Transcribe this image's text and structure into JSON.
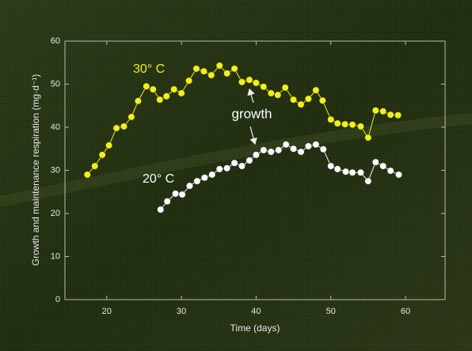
{
  "chart_data": {
    "type": "line",
    "x_label": "Time (days)",
    "y_label": "Growth and maintenance respiration (mg·d⁻¹)",
    "annotation": "growth",
    "xlim": [
      14.4,
      65.3
    ],
    "xticks": [
      20,
      30,
      40,
      50,
      60
    ],
    "ylim": [
      0,
      60
    ],
    "yticks": [
      0,
      10,
      20,
      30,
      40,
      50,
      60
    ],
    "series": [
      {
        "name": "30° C",
        "color": "#f2f20c",
        "x": [
          17.4,
          18.4,
          19.4,
          20.3,
          21.3,
          22.3,
          23.3,
          24.2,
          25.3,
          26.2,
          27.1,
          28.0,
          29.0,
          30.0,
          31.0,
          32.0,
          33.0,
          34.0,
          35.1,
          36.1,
          37.1,
          38.1,
          39.1,
          40.0,
          41.0,
          42.0,
          42.9,
          43.9,
          45.0,
          46.0,
          47.0,
          48.0,
          48.9,
          50.0,
          50.9,
          51.9,
          52.9,
          54.0,
          55.0,
          56.0,
          57.0,
          58.0,
          59.0
        ],
        "values": [
          29.0,
          31.0,
          33.6,
          35.8,
          39.8,
          40.2,
          42.4,
          46.1,
          49.5,
          48.8,
          46.4,
          47.2,
          48.8,
          47.9,
          50.8,
          53.6,
          53.0,
          52.1,
          54.3,
          52.5,
          53.6,
          50.5,
          51.0,
          50.3,
          49.4,
          47.9,
          47.5,
          49.2,
          46.4,
          45.3,
          46.6,
          48.6,
          46.2,
          41.8,
          40.9,
          40.7,
          40.6,
          40.2,
          37.6,
          43.9,
          43.7,
          42.9,
          42.8
        ]
      },
      {
        "name": "20° C",
        "color": "#ffffff",
        "x": [
          27.2,
          28.1,
          29.2,
          30.1,
          31.1,
          32.1,
          33.1,
          34.1,
          35.1,
          36.1,
          37.1,
          38.1,
          39.1,
          40.0,
          41.0,
          42.0,
          43.0,
          44.0,
          45.0,
          46.0,
          47.0,
          48.0,
          49.0,
          50.0,
          50.9,
          52.0,
          52.9,
          54.0,
          55.0,
          56.0,
          57.0,
          58.0,
          59.1
        ],
        "values": [
          20.9,
          22.8,
          24.6,
          24.4,
          26.4,
          27.5,
          28.3,
          29.0,
          30.3,
          30.5,
          31.7,
          31.0,
          32.3,
          33.6,
          34.7,
          34.3,
          34.7,
          36.0,
          35.0,
          34.3,
          35.6,
          36.0,
          34.9,
          31.0,
          30.3,
          29.7,
          29.5,
          29.5,
          27.5,
          31.9,
          31.0,
          29.9,
          29.0
        ]
      }
    ]
  }
}
